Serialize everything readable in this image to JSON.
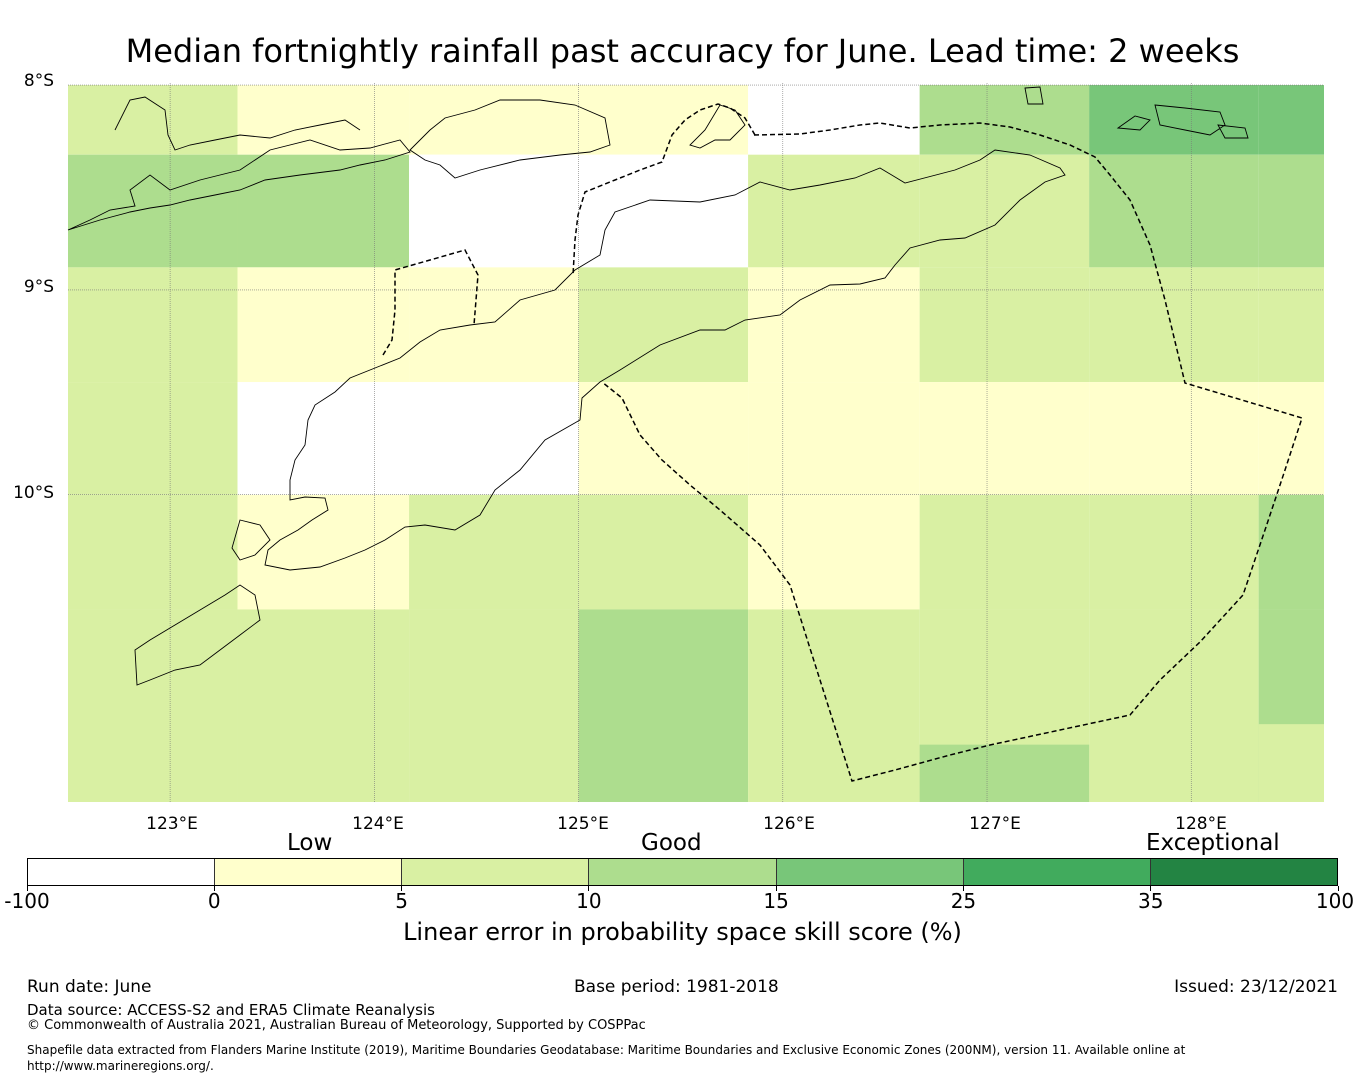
{
  "title": "Median fortnightly rainfall past accuracy for June. Lead time: 2 weeks",
  "axes": {
    "lat_labels": [
      "8°S",
      "9°S",
      "10°S"
    ],
    "lon_labels": [
      "123°E",
      "124°E",
      "125°E",
      "126°E",
      "127°E",
      "128°E"
    ],
    "lat_range": [
      -11.5,
      -7.99
    ],
    "lon_range": [
      122.5,
      128.65
    ]
  },
  "legend": {
    "categories": [
      "Low",
      "Good",
      "Exceptional"
    ],
    "ticks": [
      "-100",
      "0",
      "5",
      "10",
      "15",
      "25",
      "35",
      "100"
    ],
    "colors": [
      "#ffffff",
      "#ffffcc",
      "#d9f0a3",
      "#addd8e",
      "#78c679",
      "#41ab5d",
      "#238443"
    ],
    "label": "Linear error in probability space skill score (%)"
  },
  "footer": {
    "run_date": "Run date: June",
    "base_period": "Base period: 1981-2018",
    "issued": "Issued: 23/12/2021",
    "data_source": "Data source: ACCESS-S2 and ERA5 Climate Reanalysis",
    "copyright": "© Commonwealth of Australia 2021, Australian Bureau of Meteorology, Supported by COSPPac",
    "shapefile_line1": "Shapefile data extracted from Flanders Marine Institute (2019), Maritime Boundaries Geodatabase: Maritime Boundaries and Exclusive Economic Zones (200NM), version 11. Available online at",
    "shapefile_line2": "http://www.marineregions.org/."
  },
  "chart_data": {
    "type": "heatmap",
    "title": "Median fortnightly rainfall past accuracy for June. Lead time: 2 weeks",
    "lat_edges": [
      -8.0,
      -8.34,
      -8.89,
      -9.45,
      -10.0,
      -10.56,
      -11.5
    ],
    "lon_edges": [
      122.5,
      123.33,
      124.17,
      125.0,
      125.83,
      126.67,
      127.5,
      128.33,
      128.65
    ],
    "levels": [
      [
        2,
        1,
        1,
        1,
        0,
        3,
        4,
        4
      ],
      [
        3,
        3,
        0,
        0,
        2,
        2,
        3,
        3
      ],
      [
        2,
        1,
        1,
        2,
        1,
        2,
        2,
        2
      ],
      [
        2,
        0,
        0,
        1,
        1,
        1,
        1,
        1
      ],
      [
        2,
        1,
        2,
        2,
        1,
        2,
        2,
        3
      ],
      [
        2,
        2,
        2,
        3,
        2,
        2,
        2,
        3
      ]
    ],
    "bottom_band_overrides": [
      {
        "lat": [
          -11.22,
          -11.5
        ],
        "lon": [
          126.67,
          127.5
        ],
        "level": 3
      },
      {
        "lat": [
          -11.12,
          -11.5
        ],
        "lon": [
          128.33,
          128.65
        ],
        "level": 2
      }
    ],
    "level_ranges": [
      "-100 to 0",
      "0 to 5",
      "5 to 10",
      "10 to 15",
      "15 to 25",
      "25 to 35",
      "35 to 100"
    ]
  }
}
